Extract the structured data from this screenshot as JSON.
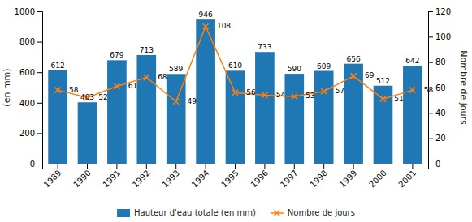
{
  "chart_data": {
    "type": "bar",
    "categories": [
      "1989",
      "1990",
      "1991",
      "1992",
      "1993",
      "1994",
      "1995",
      "1996",
      "1997",
      "1998",
      "1999",
      "2000",
      "2001"
    ],
    "series": [
      {
        "name": "Hauteur d'eau totale (en mm)",
        "type": "bar",
        "values": [
          612,
          403,
          679,
          713,
          589,
          946,
          610,
          733,
          590,
          609,
          656,
          512,
          642
        ]
      },
      {
        "name": "Nombre de jours",
        "type": "line",
        "marker": "x",
        "axis": "y2",
        "values": [
          58,
          52,
          61,
          68,
          49,
          108,
          56,
          54,
          53,
          57,
          69,
          51,
          58
        ]
      }
    ],
    "ylabel": "(en mm)",
    "y2label": "Nombre de jours",
    "ylim": [
      0,
      1000
    ],
    "yticks": [
      0,
      200,
      400,
      600,
      800,
      1000
    ],
    "y2lim": [
      0,
      120
    ],
    "y2ticks": [
      0,
      20,
      40,
      60,
      80,
      100,
      120
    ],
    "data_labels": true,
    "grid": false,
    "legend": "bottom"
  }
}
